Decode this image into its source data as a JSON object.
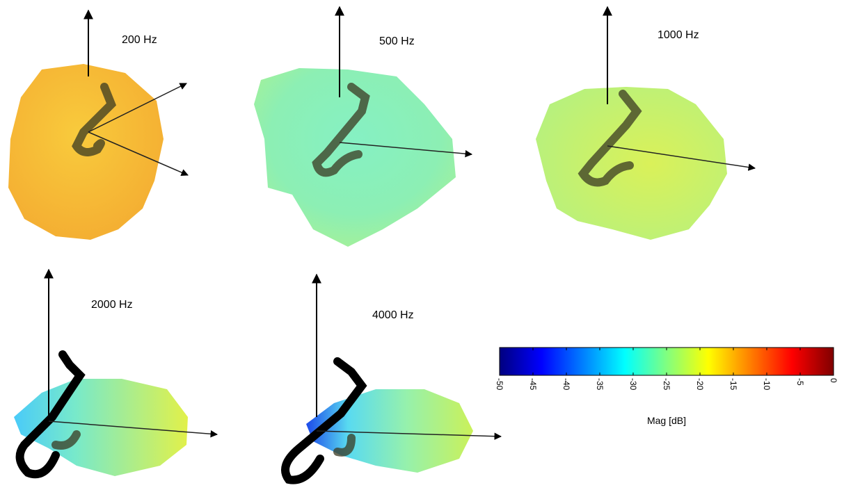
{
  "panels": [
    {
      "label": "200 Hz"
    },
    {
      "label": "500 Hz"
    },
    {
      "label": "1000 Hz"
    },
    {
      "label": "2000 Hz"
    },
    {
      "label": "4000 Hz"
    }
  ],
  "colorbar": {
    "label": "Mag [dB]",
    "lim": [
      -50,
      0
    ],
    "ticks": [
      -50,
      -45,
      -40,
      -35,
      -30,
      -25,
      -20,
      -15,
      -10,
      -5,
      0
    ],
    "colormap": "jet"
  }
}
